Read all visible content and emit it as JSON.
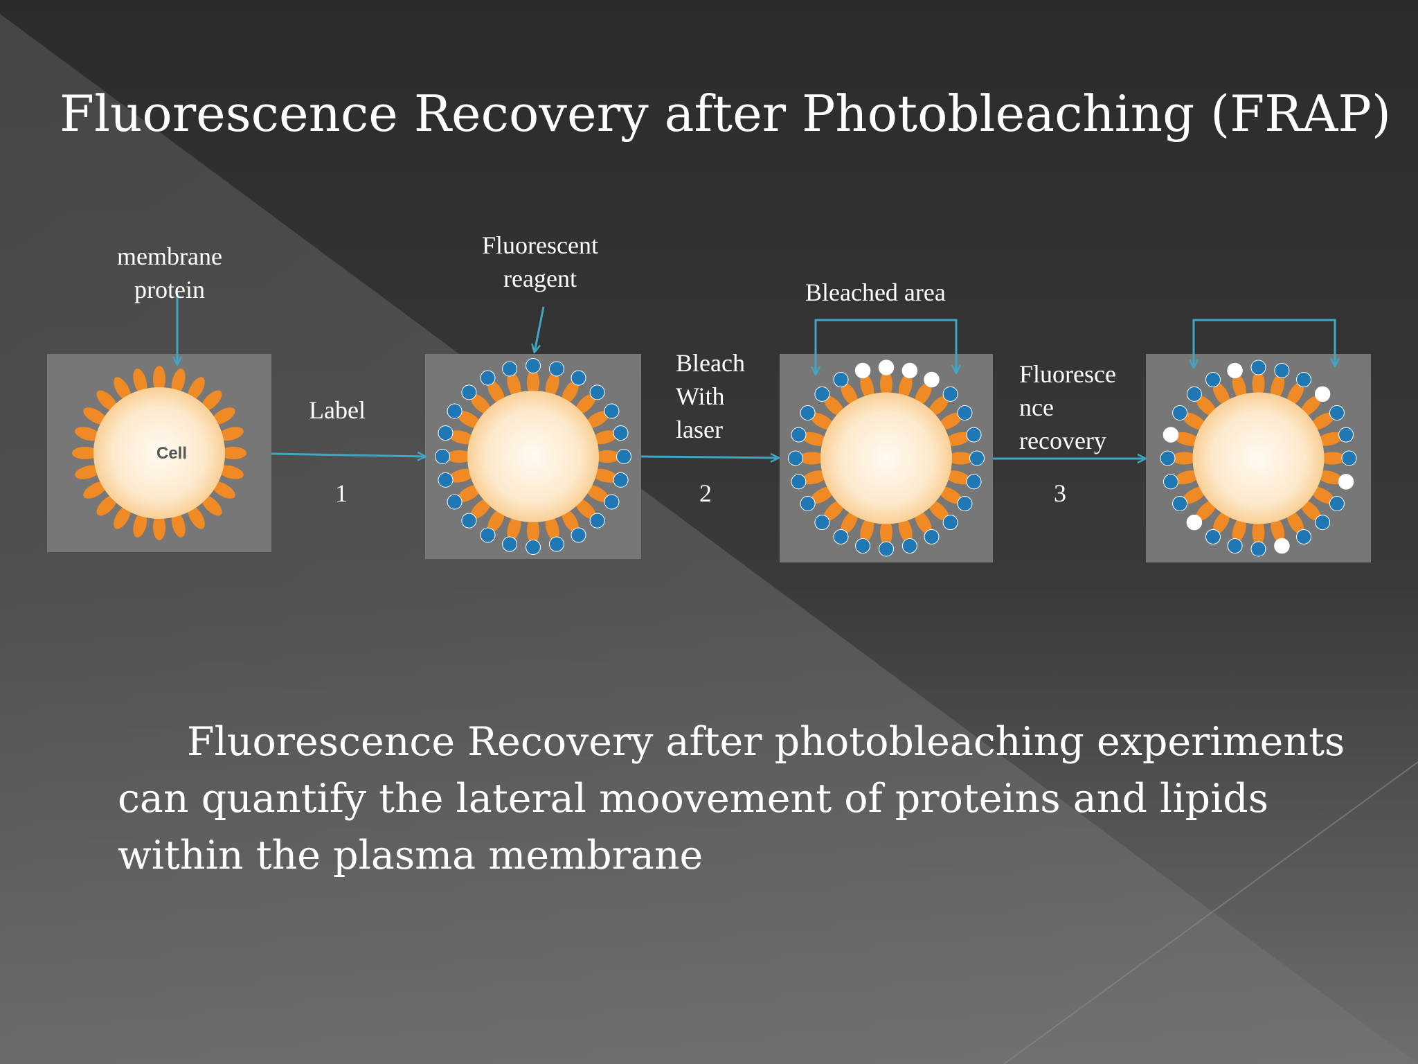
{
  "slide": {
    "title": "Fluorescence Recovery after Photobleaching (FRAP)",
    "body": "Fluorescence Recovery after photobleaching experiments can quantify the lateral moovement of proteins and lipids within the plasma membrane"
  },
  "diagram": {
    "cell_label": "Cell",
    "callouts": {
      "membrane_protein": [
        "membrane",
        "protein"
      ],
      "fluorescent_reagent": [
        "Fluorescent",
        "reagent"
      ],
      "bleached_area": "Bleached area"
    },
    "steps": [
      {
        "label_lines": [
          "Label"
        ],
        "number": "1"
      },
      {
        "label_lines": [
          "Bleach",
          "With",
          "laser"
        ],
        "number": "2"
      },
      {
        "label_lines": [
          "Fluoresce",
          "nce",
          "recovery"
        ],
        "number": "3"
      }
    ]
  },
  "colors": {
    "background": "#2c2c2c",
    "arrow": "#3fa6c4",
    "panel": "#777777",
    "protein": "#f08a24",
    "label_dot": "#1f78b4",
    "bleached_dot": "#ffffff"
  }
}
